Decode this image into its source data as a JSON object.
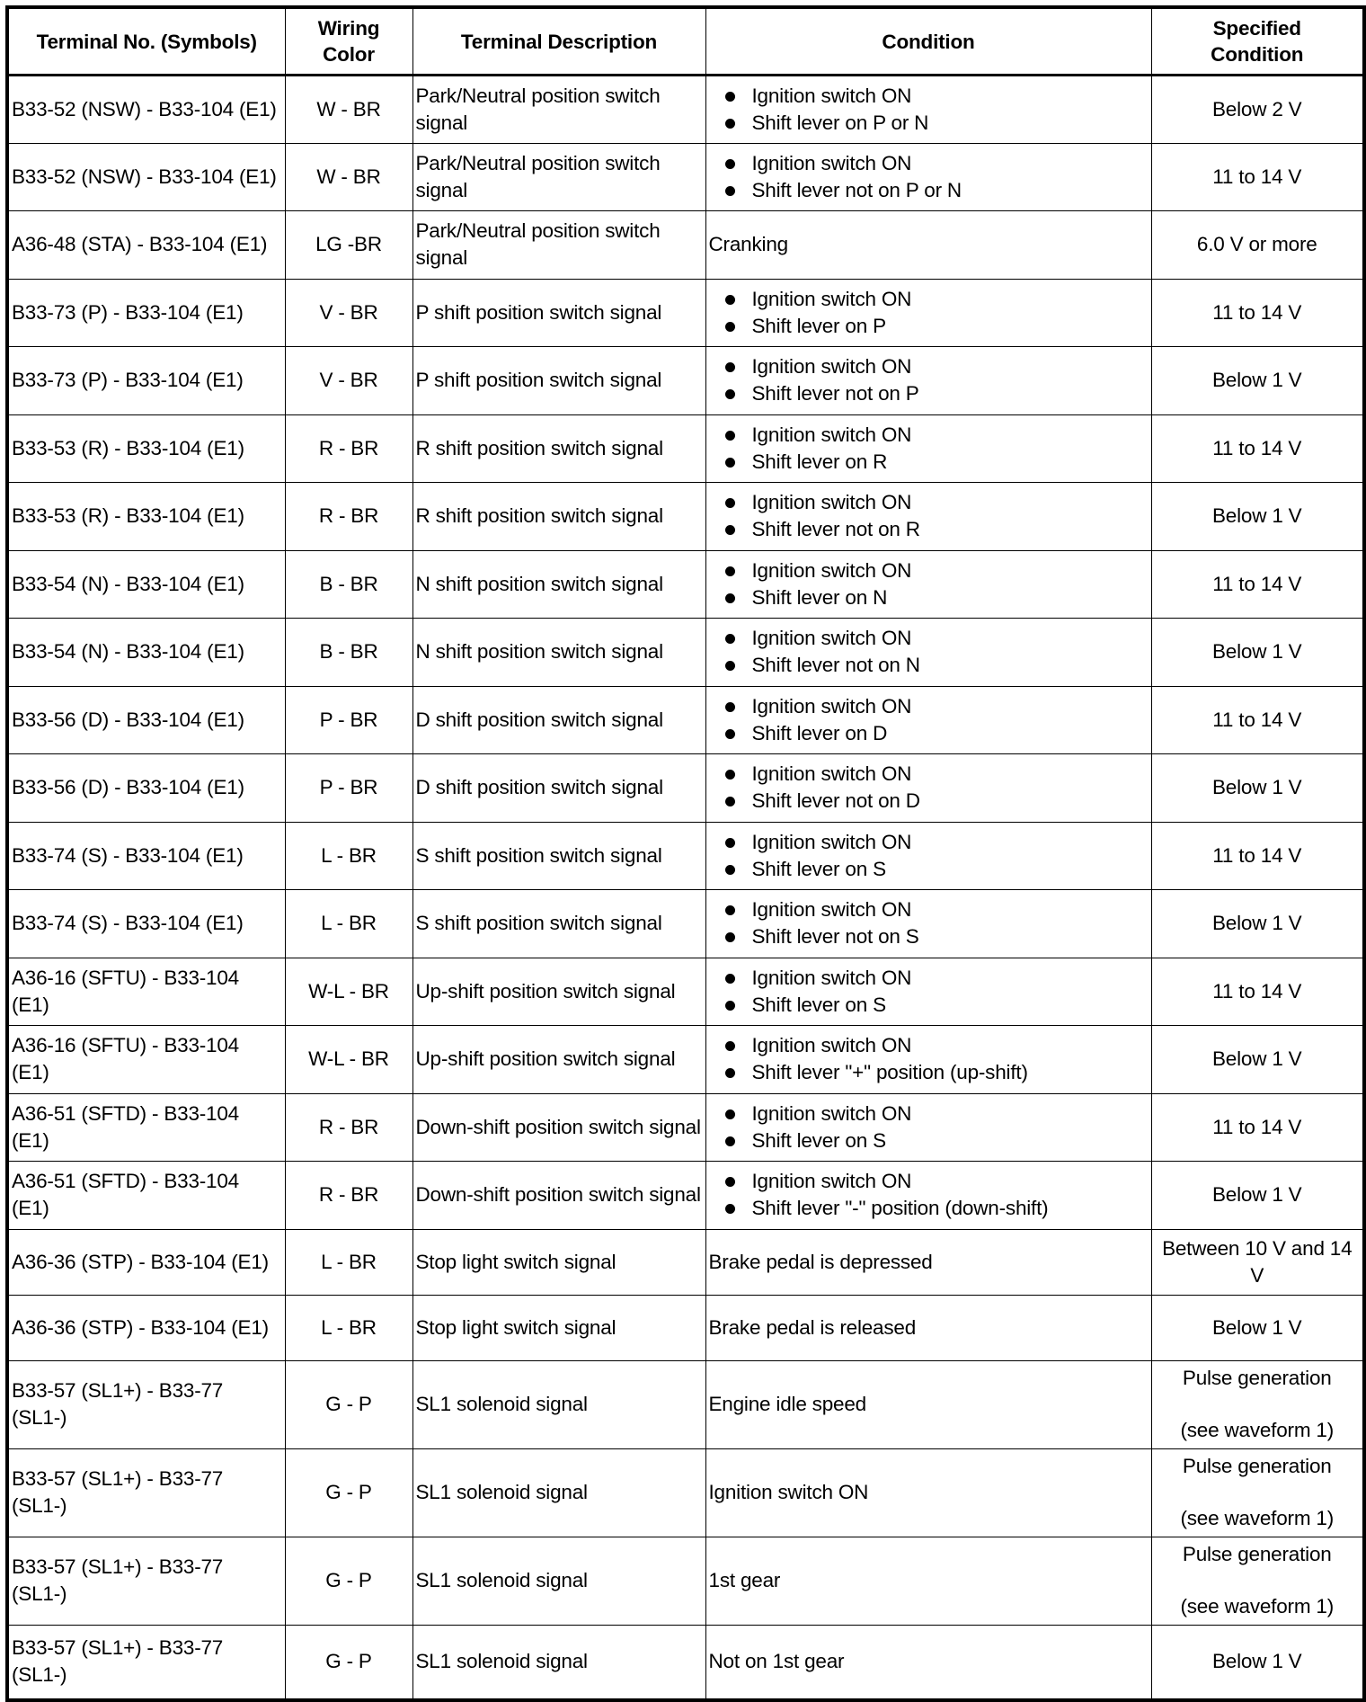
{
  "headers": [
    "Terminal No. (Symbols)",
    "Wiring Color",
    "Terminal Description",
    "Condition",
    "Specified Condition"
  ],
  "rows": [
    {
      "terminal": "B33-52 (NSW) - B33-104 (E1)",
      "color": "W - BR",
      "desc": "Park/Neutral position switch signal",
      "condition": [
        "Ignition switch ON",
        "Shift lever on P or N"
      ],
      "spec": [
        "Below 2 V"
      ]
    },
    {
      "terminal": "B33-52 (NSW) - B33-104 (E1)",
      "color": "W - BR",
      "desc": "Park/Neutral position switch signal",
      "condition": [
        "Ignition switch ON",
        "Shift lever not on P or N"
      ],
      "spec": [
        "11 to 14 V"
      ]
    },
    {
      "terminal": "A36-48 (STA) - B33-104 (E1)",
      "color": "LG -BR",
      "desc": "Park/Neutral position switch signal",
      "condition_text": "Cranking",
      "spec": [
        "6.0 V or more"
      ]
    },
    {
      "terminal": "B33-73 (P) - B33-104 (E1)",
      "color": "V - BR",
      "desc": "P shift position switch signal",
      "condition": [
        "Ignition switch ON",
        "Shift lever on P"
      ],
      "spec": [
        "11 to 14 V"
      ]
    },
    {
      "terminal": "B33-73 (P) - B33-104 (E1)",
      "color": "V - BR",
      "desc": "P shift position switch signal",
      "condition": [
        "Ignition switch ON",
        "Shift lever not on P"
      ],
      "spec": [
        "Below 1 V"
      ]
    },
    {
      "terminal": "B33-53 (R) - B33-104 (E1)",
      "color": "R - BR",
      "desc": "R shift position switch signal",
      "condition": [
        "Ignition switch ON",
        "Shift lever on R"
      ],
      "spec": [
        "11 to 14 V"
      ]
    },
    {
      "terminal": "B33-53 (R) - B33-104 (E1)",
      "color": "R - BR",
      "desc": "R shift position switch signal",
      "condition": [
        "Ignition switch ON",
        "Shift lever not on R"
      ],
      "spec": [
        "Below 1 V"
      ]
    },
    {
      "terminal": "B33-54 (N) - B33-104 (E1)",
      "color": "B - BR",
      "desc": "N shift position switch signal",
      "condition": [
        "Ignition switch ON",
        "Shift lever on N"
      ],
      "spec": [
        "11 to 14 V"
      ]
    },
    {
      "terminal": "B33-54 (N) - B33-104 (E1)",
      "color": "B - BR",
      "desc": "N shift position switch signal",
      "condition": [
        "Ignition switch ON",
        "Shift lever not on N"
      ],
      "spec": [
        "Below 1 V"
      ]
    },
    {
      "terminal": "B33-56 (D) - B33-104 (E1)",
      "color": "P - BR",
      "desc": "D shift position switch signal",
      "condition": [
        "Ignition switch ON",
        "Shift lever on D"
      ],
      "spec": [
        "11 to 14 V"
      ]
    },
    {
      "terminal": "B33-56 (D) - B33-104 (E1)",
      "color": "P - BR",
      "desc": "D shift position switch signal",
      "condition": [
        "Ignition switch ON",
        "Shift lever not on D"
      ],
      "spec": [
        "Below 1 V"
      ]
    },
    {
      "terminal": "B33-74 (S) - B33-104 (E1)",
      "color": "L - BR",
      "desc": "S shift position switch signal",
      "condition": [
        "Ignition switch ON",
        "Shift lever on S"
      ],
      "spec": [
        "11 to 14 V"
      ]
    },
    {
      "terminal": "B33-74 (S) - B33-104 (E1)",
      "color": "L - BR",
      "desc": "S shift position switch signal",
      "condition": [
        "Ignition switch ON",
        "Shift lever not on S"
      ],
      "spec": [
        "Below 1 V"
      ]
    },
    {
      "terminal": "A36-16 (SFTU) - B33-104 (E1)",
      "color": "W-L - BR",
      "desc": "Up-shift position switch signal",
      "condition": [
        "Ignition switch ON",
        "Shift lever on S"
      ],
      "spec": [
        "11 to 14 V"
      ]
    },
    {
      "terminal": "A36-16 (SFTU) - B33-104 (E1)",
      "color": "W-L - BR",
      "desc": "Up-shift position switch signal",
      "condition": [
        "Ignition switch ON",
        "Shift lever \"+\" position (up-shift)"
      ],
      "spec": [
        "Below 1 V"
      ]
    },
    {
      "terminal": "A36-51 (SFTD) - B33-104 (E1)",
      "color": "R - BR",
      "desc": "Down-shift position switch signal",
      "condition": [
        "Ignition switch ON",
        "Shift lever on S"
      ],
      "spec": [
        "11 to 14 V"
      ]
    },
    {
      "terminal": "A36-51 (SFTD) - B33-104 (E1)",
      "color": "R - BR",
      "desc": "Down-shift position switch signal",
      "condition": [
        "Ignition switch ON",
        "Shift lever \"-\" position (down-shift)"
      ],
      "spec": [
        "Below 1 V"
      ]
    },
    {
      "terminal": "A36-36 (STP) - B33-104 (E1)",
      "color": "L - BR",
      "desc": "Stop light switch signal",
      "condition_text": "Brake pedal is depressed",
      "spec": [
        "Between 10 V and 14 V"
      ]
    },
    {
      "terminal": "A36-36 (STP) - B33-104 (E1)",
      "color": "L - BR",
      "desc": "Stop light switch signal",
      "condition_text": "Brake pedal is released",
      "spec": [
        "Below 1 V"
      ]
    },
    {
      "terminal": "B33-57 (SL1+) - B33-77 (SL1-)",
      "color": "G - P",
      "desc": "SL1 solenoid signal",
      "condition_text": "Engine idle speed",
      "spec": [
        "Pulse generation",
        "(see waveform 1)"
      ]
    },
    {
      "terminal": "B33-57 (SL1+) - B33-77 (SL1-)",
      "color": "G - P",
      "desc": "SL1 solenoid signal",
      "condition_text": "Ignition switch ON",
      "spec": [
        "Pulse generation",
        "(see waveform 1)"
      ]
    },
    {
      "terminal": "B33-57 (SL1+) - B33-77 (SL1-)",
      "color": "G - P",
      "desc": "SL1 solenoid signal",
      "condition_text": "1st gear",
      "spec": [
        "Pulse generation",
        "(see waveform 1)"
      ]
    },
    {
      "terminal": "B33-57 (SL1+) - B33-77 (SL1-)",
      "color": "G - P",
      "desc": "SL1 solenoid signal",
      "condition_text": "Not on 1st gear",
      "spec": [
        "Below 1 V"
      ]
    }
  ]
}
